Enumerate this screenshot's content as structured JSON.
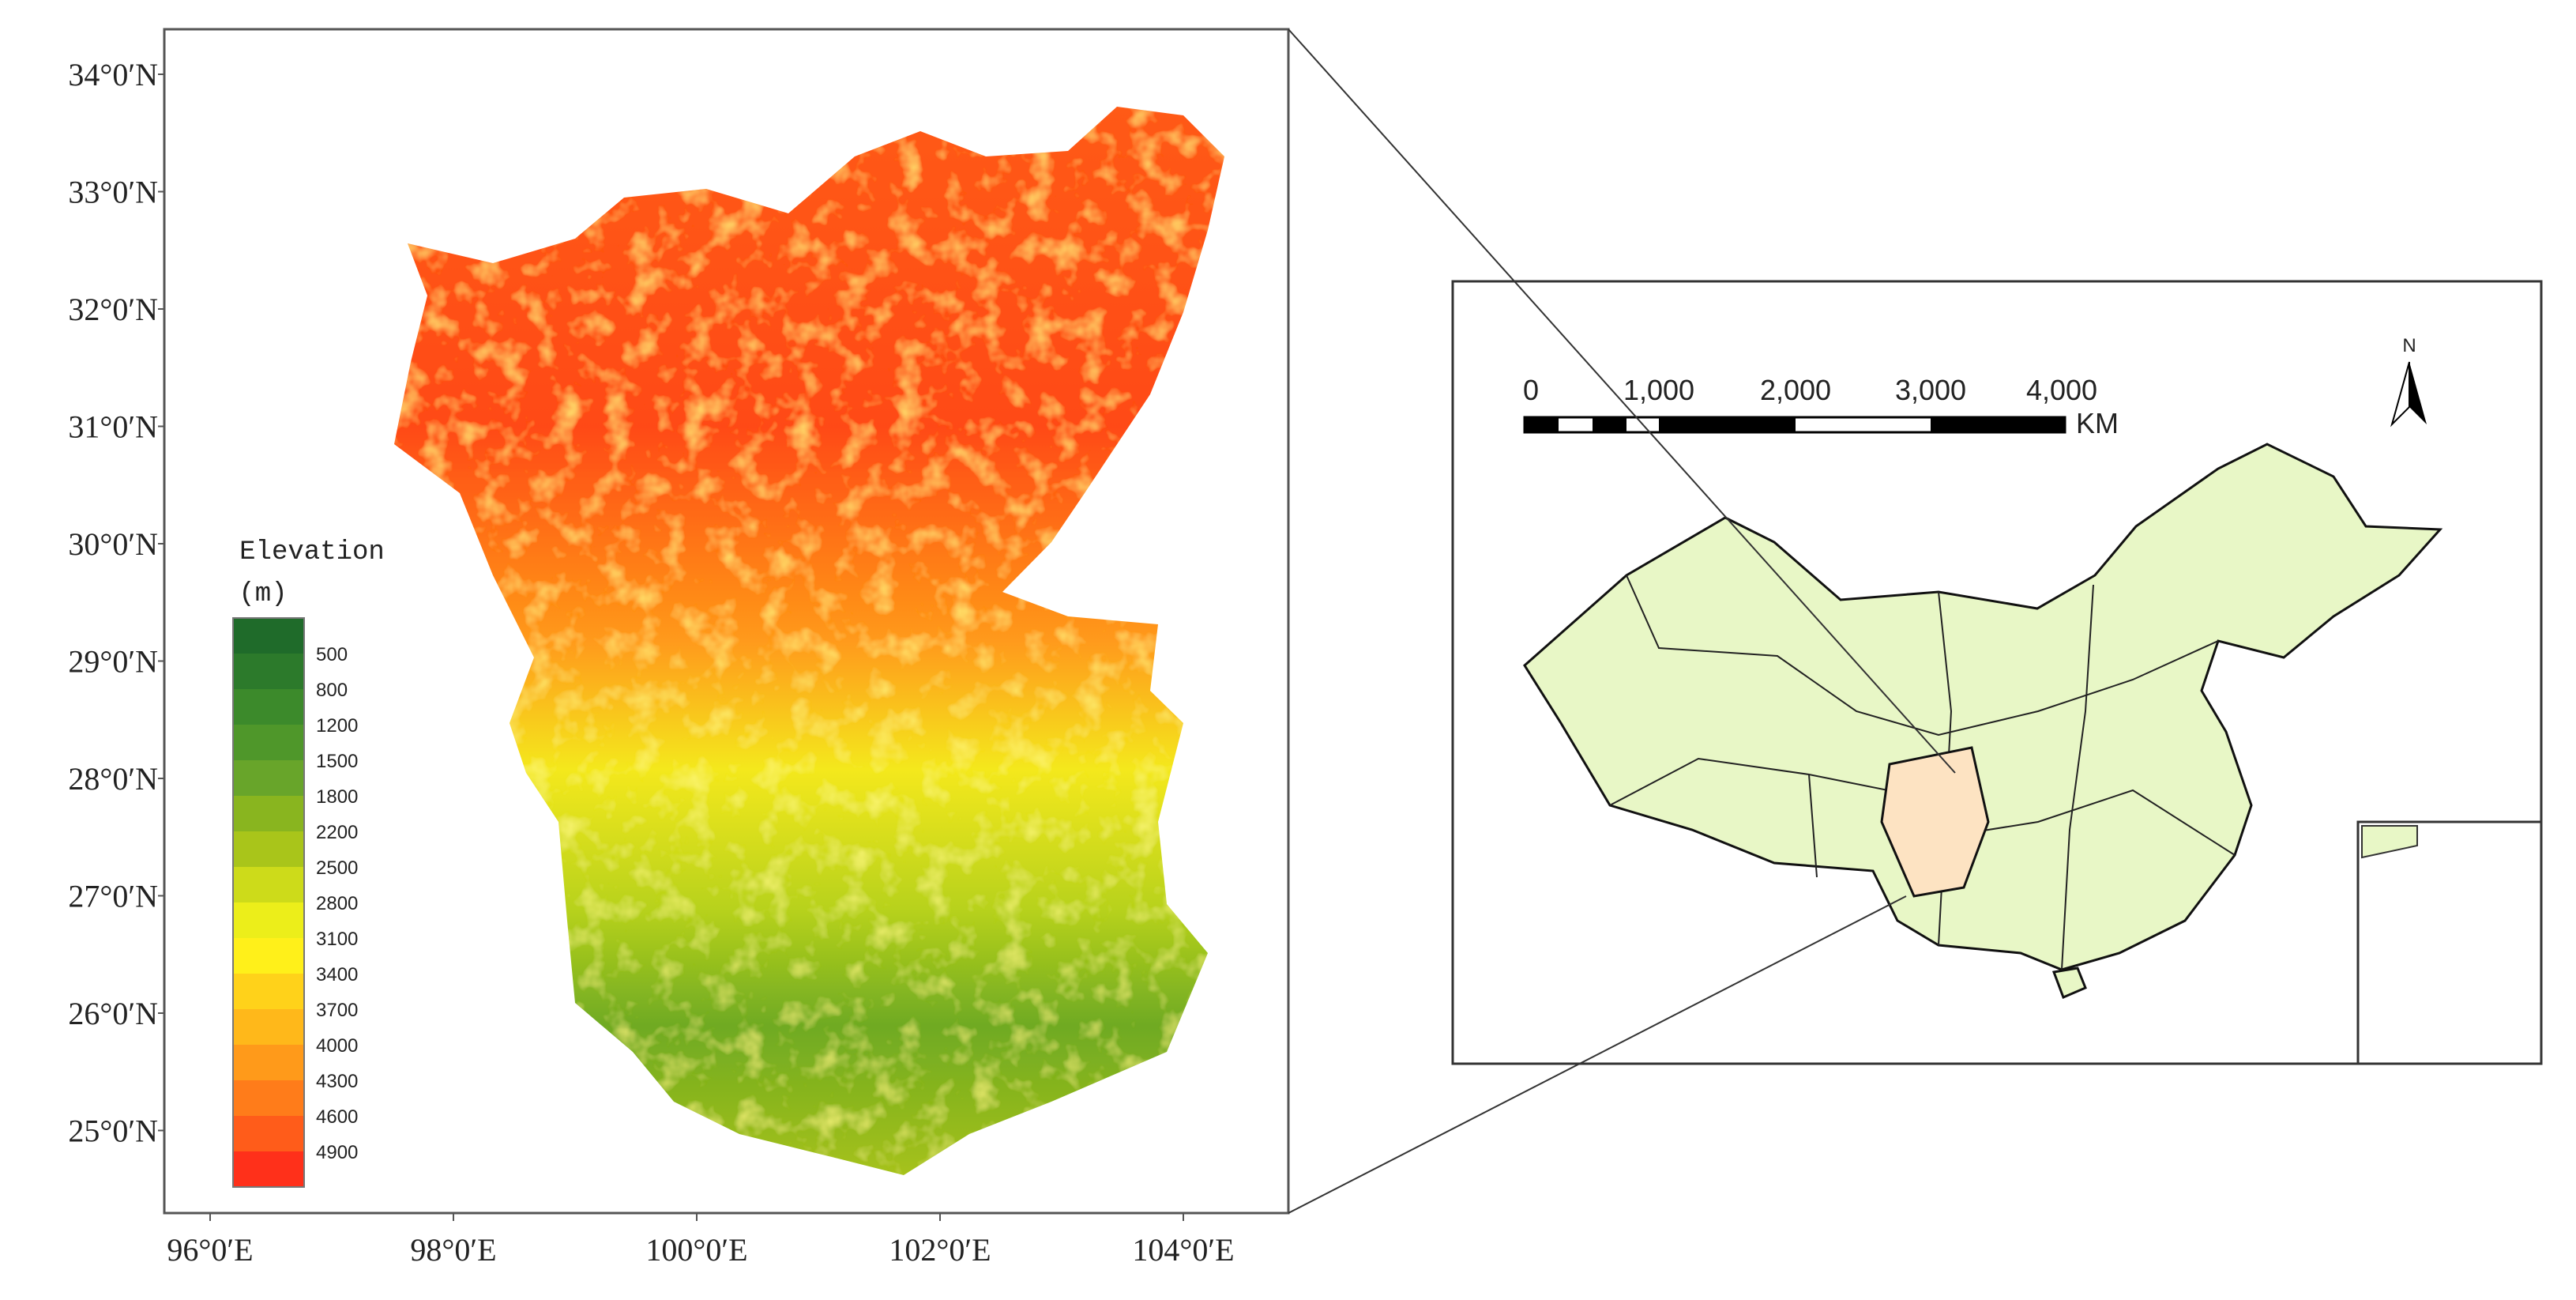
{
  "map": {
    "latitude_labels": [
      "34°0′N",
      "33°0′N",
      "32°0′N",
      "31°0′N",
      "30°0′N",
      "29°0′N",
      "28°0′N",
      "27°0′N",
      "26°0′N",
      "25°0′N"
    ],
    "longitude_labels": [
      "96°0′E",
      "98°0′E",
      "100°0′E",
      "102°0′E",
      "104°0′E"
    ],
    "legend": {
      "title": "Elevation",
      "unit": "(m)",
      "labels": [
        500,
        800,
        1200,
        1500,
        1800,
        2200,
        2500,
        2800,
        3100,
        3400,
        3700,
        4000,
        4300,
        4600,
        4900
      ],
      "colors": [
        "#1f6b2a",
        "#2c7a2b",
        "#3c8a2b",
        "#4f972a",
        "#68a52a",
        "#89b51f",
        "#a9c51a",
        "#cddb1a",
        "#ecee1a",
        "#fff01a",
        "#ffd21a",
        "#ffb81a",
        "#ff9a1a",
        "#ff7c1a",
        "#ff5c1a",
        "#ff301a"
      ]
    },
    "scale_bar": {
      "labels": [
        "0",
        "1,000",
        "2,000",
        "3,000",
        "4,000"
      ],
      "unit": "KM"
    },
    "north_arrow": "N"
  }
}
